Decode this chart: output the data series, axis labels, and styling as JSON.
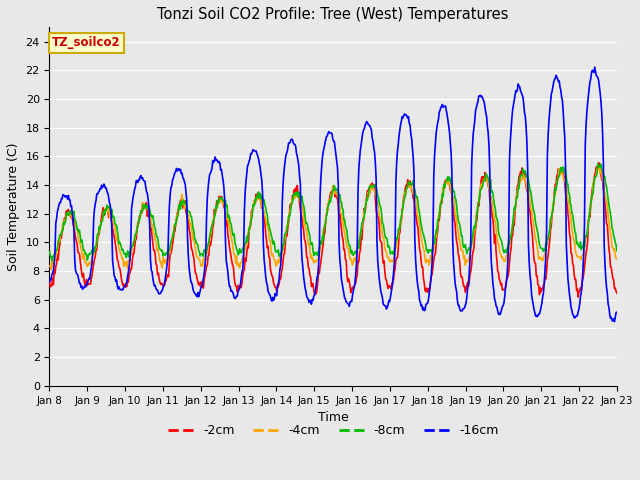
{
  "title": "Tonzi Soil CO2 Profile: Tree (West) Temperatures",
  "xlabel": "Time",
  "ylabel": "Soil Temperature (C)",
  "ylim": [
    0,
    25
  ],
  "yticks": [
    0,
    2,
    4,
    6,
    8,
    10,
    12,
    14,
    16,
    18,
    20,
    22,
    24
  ],
  "colors": {
    "-2cm": "#FF0000",
    "-4cm": "#FFA500",
    "-8cm": "#00BB00",
    "-16cm": "#0000FF"
  },
  "legend_label": "TZ_soilco2",
  "legend_bg": "#FFFFCC",
  "legend_border": "#CCAA00",
  "plot_bg": "#E8E8E8",
  "grid_color": "#FFFFFF",
  "xtick_labels": [
    "Jan 8",
    "Jan 9",
    "Jan 10",
    "Jan 11",
    "Jan 12",
    "Jan 13",
    "Jan 14",
    "Jan 15",
    "Jan 16",
    "Jan 17",
    "Jan 18",
    "Jan 19",
    "Jan 20",
    "Jan 21",
    "Jan 22",
    "Jan 23"
  ],
  "line_width": 1.2,
  "n_days": 15,
  "pts_per_day": 48
}
